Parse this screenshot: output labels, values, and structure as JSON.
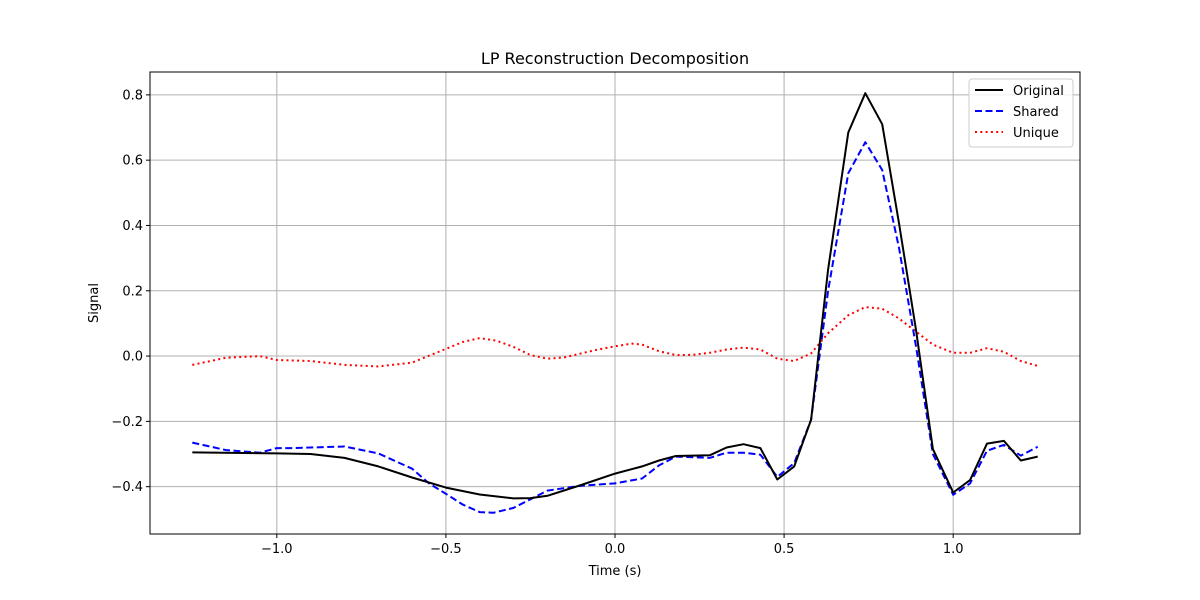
{
  "chart_data": {
    "type": "line",
    "title": "LP Reconstruction Decomposition",
    "xlabel": "Time (s)",
    "ylabel": "Signal",
    "xlim": [
      -1.375,
      1.375
    ],
    "ylim": [
      -0.545,
      0.87
    ],
    "xticks": [
      -1.0,
      -0.5,
      0.0,
      0.5,
      1.0
    ],
    "xtick_labels": [
      "−1.0",
      "−0.5",
      "0.0",
      "0.5",
      "1.0"
    ],
    "yticks": [
      -0.4,
      -0.2,
      0.0,
      0.2,
      0.4,
      0.6,
      0.8
    ],
    "ytick_labels": [
      "−0.4",
      "−0.2",
      "0.0",
      "0.2",
      "0.4",
      "0.6",
      "0.8"
    ],
    "grid": true,
    "legend_position": "top-right",
    "series": [
      {
        "name": "Original",
        "color": "#000000",
        "style": "solid",
        "x": [
          -1.25,
          -1.1,
          -1.0,
          -0.9,
          -0.8,
          -0.7,
          -0.6,
          -0.5,
          -0.4,
          -0.3,
          -0.25,
          -0.2,
          -0.1,
          0.0,
          0.08,
          0.13,
          0.18,
          0.28,
          0.33,
          0.38,
          0.43,
          0.48,
          0.53,
          0.58,
          0.63,
          0.69,
          0.74,
          0.79,
          0.84,
          0.89,
          0.94,
          1.0,
          1.05,
          1.1,
          1.15,
          1.2,
          1.25
        ],
        "y": [
          -0.295,
          -0.297,
          -0.298,
          -0.3,
          -0.312,
          -0.338,
          -0.372,
          -0.403,
          -0.424,
          -0.436,
          -0.435,
          -0.428,
          -0.395,
          -0.36,
          -0.338,
          -0.32,
          -0.306,
          -0.304,
          -0.28,
          -0.27,
          -0.282,
          -0.378,
          -0.338,
          -0.195,
          0.265,
          0.685,
          0.805,
          0.71,
          0.405,
          0.08,
          -0.285,
          -0.418,
          -0.38,
          -0.268,
          -0.26,
          -0.32,
          -0.308
        ]
      },
      {
        "name": "Shared",
        "color": "#0000ff",
        "style": "dashed",
        "x": [
          -1.25,
          -1.15,
          -1.05,
          -1.0,
          -0.95,
          -0.9,
          -0.8,
          -0.7,
          -0.6,
          -0.55,
          -0.5,
          -0.45,
          -0.4,
          -0.36,
          -0.3,
          -0.2,
          -0.1,
          0.0,
          0.08,
          0.13,
          0.18,
          0.28,
          0.33,
          0.38,
          0.43,
          0.48,
          0.53,
          0.58,
          0.63,
          0.69,
          0.74,
          0.79,
          0.84,
          0.89,
          0.94,
          1.0,
          1.05,
          1.1,
          1.15,
          1.2,
          1.25
        ],
        "y": [
          -0.265,
          -0.288,
          -0.296,
          -0.282,
          -0.282,
          -0.28,
          -0.277,
          -0.298,
          -0.345,
          -0.39,
          -0.422,
          -0.455,
          -0.478,
          -0.48,
          -0.465,
          -0.412,
          -0.397,
          -0.39,
          -0.375,
          -0.335,
          -0.308,
          -0.312,
          -0.296,
          -0.296,
          -0.302,
          -0.37,
          -0.328,
          -0.195,
          0.2,
          0.56,
          0.655,
          0.57,
          0.33,
          0.03,
          -0.3,
          -0.425,
          -0.39,
          -0.29,
          -0.272,
          -0.305,
          -0.278
        ]
      },
      {
        "name": "Unique",
        "color": "#ff0000",
        "style": "dotted",
        "x": [
          -1.25,
          -1.15,
          -1.05,
          -1.0,
          -0.9,
          -0.8,
          -0.7,
          -0.6,
          -0.5,
          -0.45,
          -0.4,
          -0.35,
          -0.3,
          -0.25,
          -0.2,
          -0.15,
          -0.1,
          -0.05,
          0.0,
          0.05,
          0.08,
          0.13,
          0.18,
          0.23,
          0.28,
          0.33,
          0.38,
          0.43,
          0.48,
          0.53,
          0.58,
          0.63,
          0.69,
          0.74,
          0.79,
          0.84,
          0.89,
          0.94,
          1.0,
          1.05,
          1.1,
          1.15,
          1.2,
          1.25
        ],
        "y": [
          -0.027,
          -0.005,
          0.0,
          -0.012,
          -0.015,
          -0.027,
          -0.032,
          -0.02,
          0.022,
          0.043,
          0.055,
          0.047,
          0.028,
          0.003,
          -0.008,
          -0.004,
          0.008,
          0.02,
          0.03,
          0.038,
          0.035,
          0.015,
          0.003,
          0.004,
          0.01,
          0.02,
          0.026,
          0.02,
          -0.008,
          -0.015,
          0.008,
          0.07,
          0.125,
          0.15,
          0.145,
          0.115,
          0.075,
          0.035,
          0.01,
          0.01,
          0.024,
          0.013,
          -0.015,
          -0.03
        ]
      }
    ]
  }
}
